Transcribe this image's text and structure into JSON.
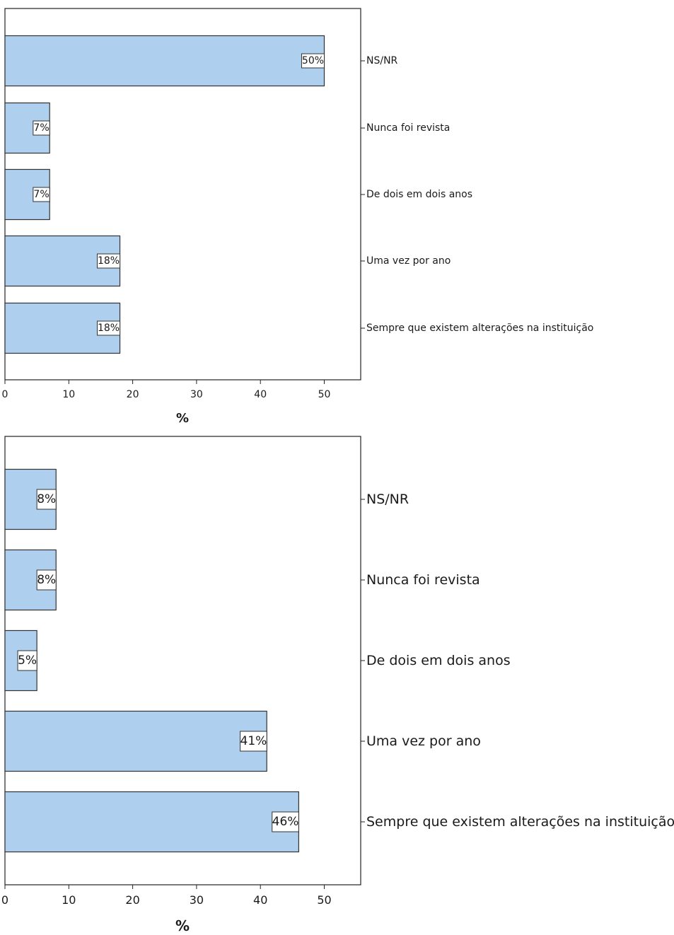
{
  "chart_data": [
    {
      "type": "bar",
      "orientation": "horizontal",
      "categories": [
        "NS/NR",
        "Nunca foi revista",
        "De dois em dois anos",
        "Uma vez por ano",
        "Sempre que existem alterações na instituição"
      ],
      "values": [
        50,
        7,
        7,
        18,
        18
      ],
      "data_labels": [
        "50%",
        "7%",
        "7%",
        "18%",
        "18%"
      ],
      "xlabel": "%",
      "xticks": [
        "0",
        "10",
        "20",
        "30",
        "40",
        "50"
      ],
      "xlim": [
        0,
        55
      ],
      "bar_color": "#aed0ee",
      "grid": false
    },
    {
      "type": "bar",
      "orientation": "horizontal",
      "categories": [
        "NS/NR",
        "Nunca foi revista",
        "De dois em dois anos",
        "Uma vez por ano",
        "Sempre que existem alterações na instituição"
      ],
      "values": [
        8,
        8,
        5,
        41,
        46
      ],
      "data_labels": [
        "8%",
        "8%",
        "5%",
        "41%",
        "46%"
      ],
      "xlabel": "%",
      "xticks": [
        "0",
        "10",
        "20",
        "30",
        "40",
        "50"
      ],
      "xlim": [
        0,
        55
      ],
      "bar_color": "#aed0ee",
      "grid": false
    }
  ]
}
